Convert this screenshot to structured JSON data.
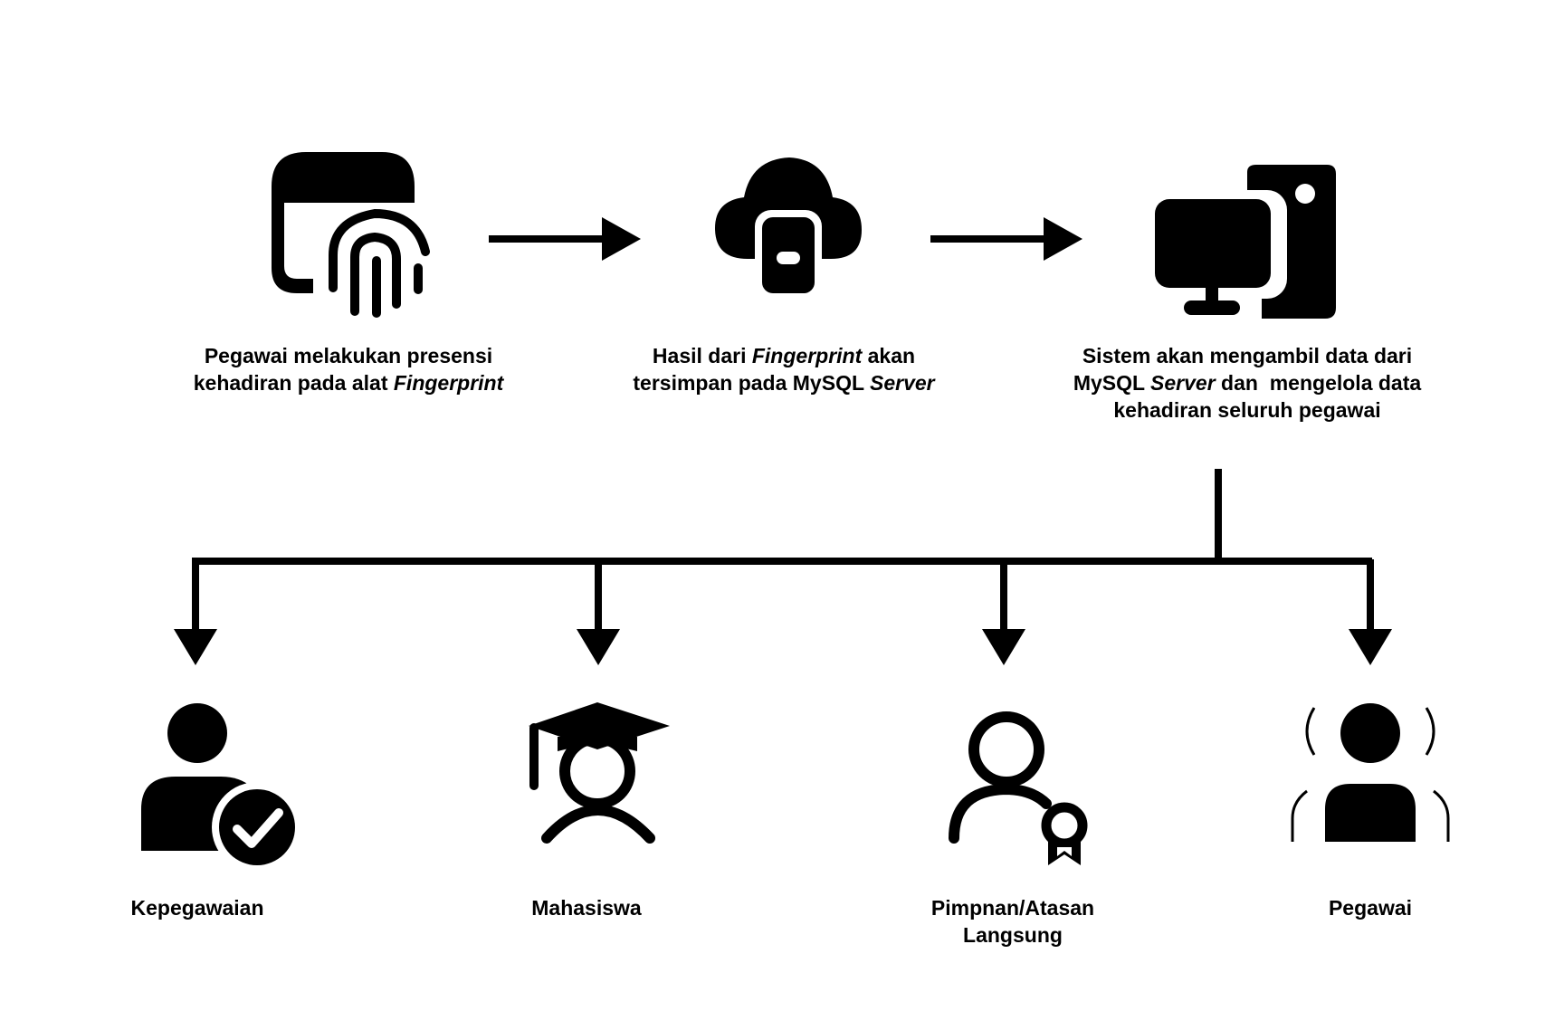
{
  "flow": {
    "steps": [
      {
        "icon": "fingerprint-scanner-icon",
        "caption_line1": "Pegawai melakukan presensi",
        "caption_line2_prefix": "kehadiran pada alat ",
        "caption_line2_italic": "Fingerprint"
      },
      {
        "icon": "cloud-database-icon",
        "caption_line1_prefix": "Hasil dari ",
        "caption_line1_italic": "Fingerprint",
        "caption_line1_suffix": " akan",
        "caption_line2_prefix": "tersimpan pada MySQL ",
        "caption_line2_italic": "Server"
      },
      {
        "icon": "desktop-computer-icon",
        "caption_line1": "Sistem akan mengambil data dari",
        "caption_line2_prefix": "MySQL ",
        "caption_line2_italic": "Server",
        "caption_line2_suffix": " dan  mengelola data",
        "caption_line3": "kehadiran seluruh pegawai"
      }
    ]
  },
  "roles": [
    {
      "icon": "user-check-icon",
      "label": "Kepegawaian"
    },
    {
      "icon": "graduate-student-icon",
      "label": "Mahasiswa"
    },
    {
      "icon": "user-award-icon",
      "label_line1": "Pimpnan/Atasan",
      "label_line2": "Langsung"
    },
    {
      "icon": "user-broadcast-icon",
      "label": "Pegawai"
    }
  ],
  "colors": {
    "ink": "#000000",
    "background": "#ffffff"
  }
}
